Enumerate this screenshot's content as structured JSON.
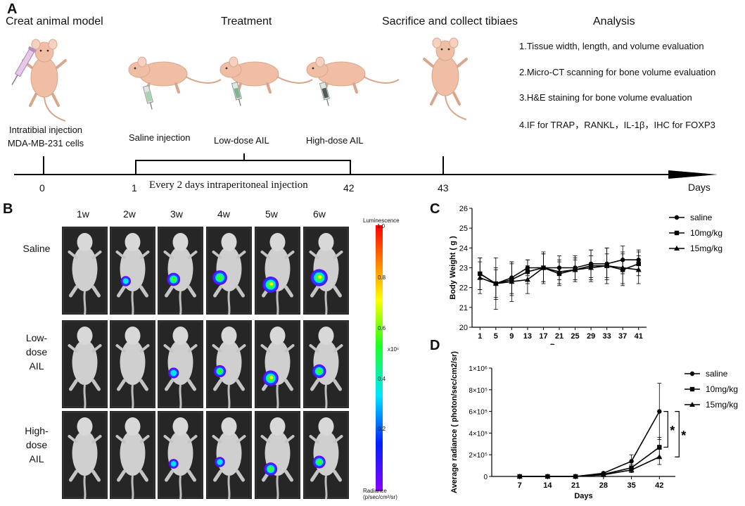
{
  "panelA": {
    "letter": "A",
    "sections": {
      "model": "Creat animal model",
      "treatment": "Treatment",
      "sacrifice": "Sacrifice and collect tibiaes",
      "analysis": "Analysis"
    },
    "steps": {
      "intratibial_1": "Intratibial injection",
      "intratibial_2": "MDA-MB-231 cells",
      "saline": "Saline injection",
      "low": "Low-dose AIL",
      "high": "High-dose AIL"
    },
    "analysis_items": [
      "1.Tissue width, length, and volume evaluation",
      "2.Micro-CT scanning for bone volume evaluation",
      "3.H&E staining for bone volume evaluation",
      "4.IF for TRAP，RANKL，IL-1β，IHC for FOXP3"
    ],
    "timeline": {
      "t0": "0",
      "t1": "1",
      "t42": "42",
      "t43": "43",
      "unit": "Days",
      "bracket_label": "Every 2 days intraperitoneal injection"
    }
  },
  "panelB": {
    "letter": "B",
    "weeks": [
      "1w",
      "2w",
      "3w",
      "4w",
      "5w",
      "6w"
    ],
    "groups": {
      "saline": "Saline",
      "low_1": "Low-",
      "low_2": "dose",
      "low_3": "AIL",
      "high_1": "High-",
      "high_2": "dose",
      "high_3": "AIL"
    },
    "colorbar": {
      "title": "Luminescence",
      "max": "1.0",
      "ticks": [
        "0.8",
        "0.6",
        "0.4",
        "0.2"
      ],
      "scale": "x10⁶",
      "unit_1": "Radiance",
      "unit_2": "(p/sec/cm²/sr)"
    },
    "signal_intensity": [
      [
        0,
        0.25,
        0.55,
        0.7,
        0.85,
        0.95
      ],
      [
        0,
        0,
        0.3,
        0.45,
        0.8,
        0.6
      ],
      [
        0,
        0,
        0.2,
        0.25,
        0.55,
        0.5
      ]
    ]
  },
  "chart_data": [
    {
      "id": "C",
      "letter": "C",
      "type": "line",
      "title": "",
      "xlabel": "Days",
      "ylabel": "Body Weight ( g )",
      "ylim": [
        20,
        26
      ],
      "yticks": [
        20,
        21,
        22,
        23,
        24,
        25,
        26
      ],
      "x": [
        1,
        5,
        9,
        13,
        17,
        21,
        25,
        29,
        33,
        37,
        41
      ],
      "series": [
        {
          "name": "saline",
          "marker": "circle",
          "values": [
            22.7,
            22.2,
            22.5,
            23.0,
            23.0,
            23.0,
            23.0,
            23.2,
            23.2,
            23.4,
            23.4
          ],
          "errors": [
            0.8,
            0.8,
            0.8,
            0.4,
            0.8,
            0.6,
            0.6,
            0.7,
            0.8,
            0.7,
            0.5
          ]
        },
        {
          "name": "10mg/kg",
          "marker": "square",
          "values": [
            22.7,
            22.2,
            22.4,
            22.8,
            23.0,
            22.7,
            22.9,
            23.1,
            23.1,
            22.9,
            23.2
          ],
          "errors": [
            0.8,
            0.7,
            0.8,
            0.6,
            0.7,
            0.6,
            0.6,
            0.8,
            0.9,
            0.8,
            0.6
          ]
        },
        {
          "name": "15mg/kg",
          "marker": "triangle",
          "values": [
            22.5,
            22.2,
            22.3,
            22.4,
            23.0,
            22.8,
            22.9,
            23.0,
            23.1,
            23.0,
            22.9
          ],
          "errors": [
            0.8,
            1.3,
            1.0,
            0.7,
            0.7,
            0.6,
            0.5,
            0.6,
            0.6,
            0.8,
            0.7
          ]
        }
      ],
      "legend": "top-right"
    },
    {
      "id": "D",
      "letter": "D",
      "type": "line",
      "title": "",
      "xlabel": "Days",
      "ylabel": "Average radiance ( photon/sec/cm2/sr)",
      "ylim": [
        0,
        1000000
      ],
      "yticks": [
        0,
        200000,
        400000,
        600000,
        800000,
        1000000
      ],
      "ytick_labels": [
        "0",
        "2×10⁵",
        "4×10⁵",
        "6×10⁵",
        "8×10⁵",
        "1×10⁶"
      ],
      "x": [
        7,
        14,
        21,
        28,
        35,
        42
      ],
      "series": [
        {
          "name": "saline",
          "marker": "circle",
          "values": [
            0,
            0,
            0,
            30000,
            140000,
            600000
          ],
          "errors": [
            0,
            0,
            0,
            10000,
            60000,
            260000
          ]
        },
        {
          "name": "10mg/kg",
          "marker": "square",
          "values": [
            0,
            0,
            0,
            20000,
            80000,
            270000
          ],
          "errors": [
            0,
            0,
            0,
            8000,
            30000,
            90000
          ]
        },
        {
          "name": "15mg/kg",
          "marker": "triangle",
          "values": [
            0,
            0,
            0,
            15000,
            60000,
            180000
          ],
          "errors": [
            0,
            0,
            0,
            6000,
            25000,
            70000
          ]
        }
      ],
      "significance": [
        "*",
        "*"
      ],
      "legend": "top-right"
    }
  ]
}
